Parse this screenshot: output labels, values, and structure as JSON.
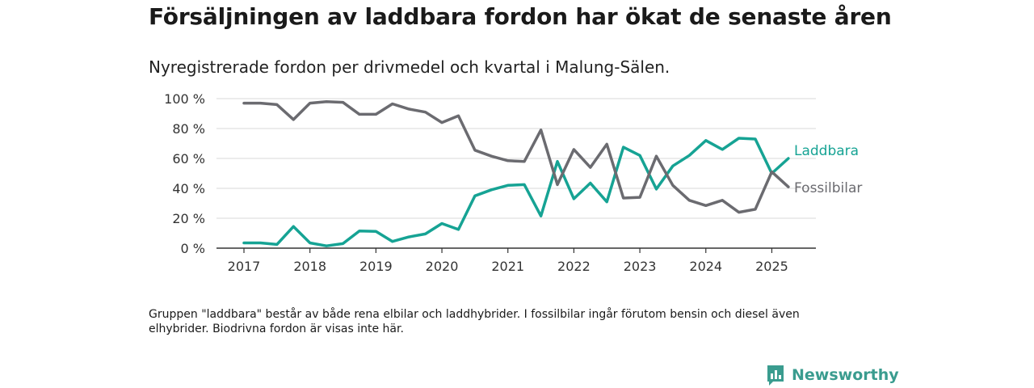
{
  "title": "Försäljningen av laddbara fordon har ökat de senaste åren",
  "subtitle": "Nyregistrerade fordon per drivmedel och kvartal i Malung-Sälen.",
  "note": "Gruppen \"laddbara\" består av både rena elbilar och laddhybrider. I fossilbilar ingår förutom bensin och diesel även elhybrider. Biodrivna fordon är visas inte här.",
  "logo": {
    "text": "Newsworthy",
    "icon": "newsworthy-chart-icon",
    "color": "#3a9c8f"
  },
  "chart_data": {
    "type": "line",
    "x_unit": "quarter",
    "x_ticks": [
      "2017",
      "2018",
      "2019",
      "2020",
      "2021",
      "2022",
      "2023",
      "2024",
      "2025"
    ],
    "y_ticks": [
      "0 %",
      "20 %",
      "40 %",
      "60 %",
      "80 %",
      "100 %"
    ],
    "ylim": [
      0,
      100
    ],
    "grid": true,
    "x": [
      "2017Q1",
      "2017Q2",
      "2017Q3",
      "2017Q4",
      "2018Q1",
      "2018Q2",
      "2018Q3",
      "2018Q4",
      "2019Q1",
      "2019Q2",
      "2019Q3",
      "2019Q4",
      "2020Q1",
      "2020Q2",
      "2020Q3",
      "2020Q4",
      "2021Q1",
      "2021Q2",
      "2021Q3",
      "2021Q4",
      "2022Q1",
      "2022Q2",
      "2022Q3",
      "2022Q4",
      "2023Q1",
      "2023Q2",
      "2023Q3",
      "2023Q4",
      "2024Q1",
      "2024Q2",
      "2024Q3",
      "2024Q4",
      "2025Q1",
      "2025Q2"
    ],
    "series": [
      {
        "name": "Laddbara",
        "color": "#16a394",
        "values": [
          3.5,
          3.5,
          2.5,
          14.5,
          3.5,
          1.5,
          3,
          11.5,
          11.2,
          4.5,
          7.5,
          9.5,
          16.5,
          12.5,
          35,
          39,
          42,
          42.5,
          21.5,
          58,
          33,
          43.5,
          31,
          67.5,
          62,
          39.5,
          55,
          62,
          72,
          66,
          73.5,
          73,
          50,
          60
        ]
      },
      {
        "name": "Fossilbilar",
        "color": "#6b6b70",
        "values": [
          97,
          97,
          96,
          86,
          97,
          98,
          97.5,
          89.5,
          89.5,
          96.5,
          93,
          91,
          84,
          88.5,
          65.5,
          61.5,
          58.5,
          58,
          79,
          42.5,
          66,
          54,
          69.5,
          33.5,
          34,
          61.5,
          42,
          32,
          28.5,
          32,
          24,
          26,
          51,
          41
        ]
      }
    ]
  }
}
